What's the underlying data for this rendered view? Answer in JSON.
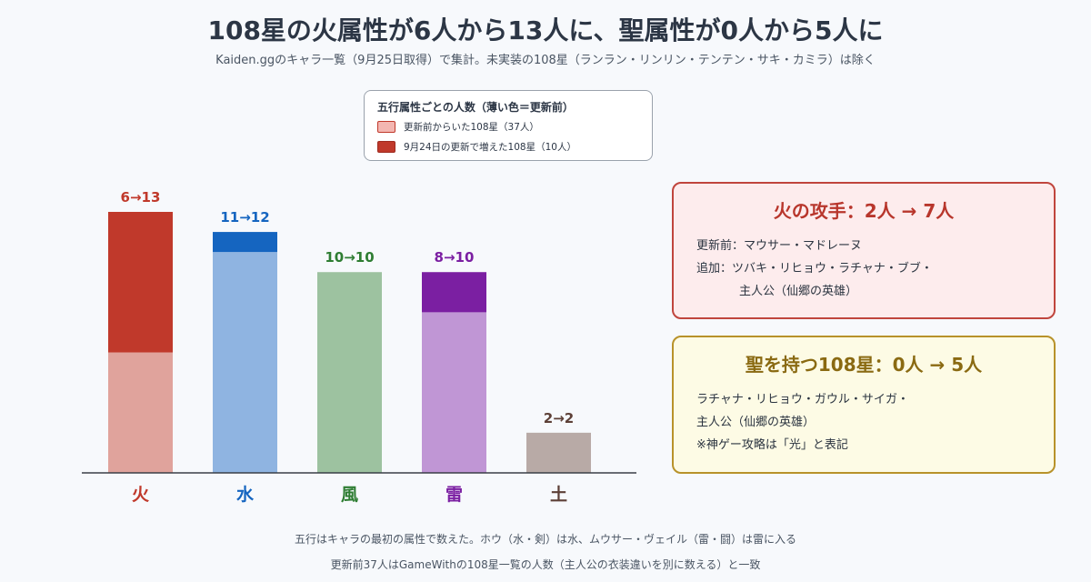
{
  "title": "108星の火属性が6人から13人に、聖属性が0人から5人に",
  "subtitle": "Kaiden.ggのキャラ一覧（9月25日取得）で集計。未実装の108星（ランラン・リンリン・テンテン・サキ・カミラ）は除く",
  "legend": {
    "title": "五行属性ごとの人数（薄い色＝更新前）",
    "before_label": "更新前からいた108星（37人）",
    "added_label": "9月24日の更新で増えた108星（10人）"
  },
  "chart_data": {
    "type": "bar",
    "stacked": true,
    "categories": [
      "火",
      "水",
      "風",
      "雷",
      "土"
    ],
    "series": [
      {
        "name": "更新前からいた108星（37人）",
        "values": [
          6,
          11,
          10,
          8,
          2
        ]
      },
      {
        "name": "9月24日の更新で増えた108星（10人）",
        "values": [
          7,
          1,
          0,
          2,
          0
        ]
      }
    ],
    "data_labels": [
      "6→13",
      "11→12",
      "10→10",
      "8→10",
      "2→2"
    ],
    "ylim": [
      0,
      13
    ],
    "grid": false,
    "legend_position": "top",
    "colors": {
      "before": [
        "#e0a39c",
        "#8fb4e1",
        "#9dc2a0",
        "#c096d5",
        "#b8aaa6"
      ],
      "added": [
        "#c0392b",
        "#1565c0",
        "#9dc2a0",
        "#7b1fa2",
        "#b8aaa6"
      ],
      "labels": [
        "#c0392b",
        "#1565c0",
        "#2e7d32",
        "#7b1fa2",
        "#5d4037"
      ]
    }
  },
  "cards": {
    "fire": {
      "title": "火の攻手：2人 → 7人",
      "line1": "更新前：マウサー・マドレーヌ",
      "line2": "追加：ツバキ・リヒョウ・ラチャナ・ブブ・",
      "line3": "主人公（仙郷の英雄）"
    },
    "holy": {
      "title": "聖を持つ108星：0人 → 5人",
      "line1": "ラチャナ・リヒョウ・ガウル・サイガ・",
      "line2": "主人公（仙郷の英雄）",
      "line3": "※神ゲー攻略は「光」と表記"
    }
  },
  "footnotes": [
    "五行はキャラの最初の属性で数えた。ホウ（水・剣）は水、ムウサー・ヴェイル（雷・闘）は雷に入る",
    "更新前37人はGameWithの108星一覧の人数（主人公の衣装違いを別に数える）と一致"
  ]
}
